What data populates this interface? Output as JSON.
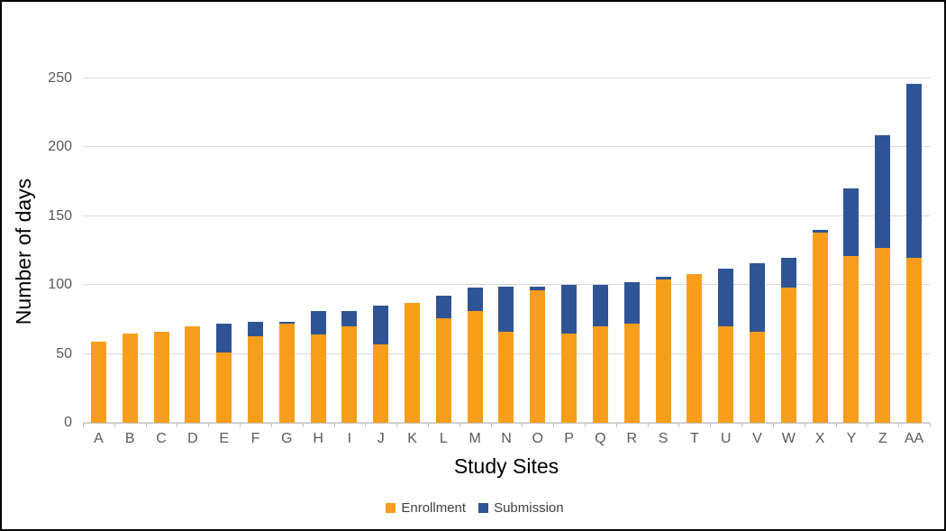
{
  "chart_data": {
    "type": "bar",
    "stacked": true,
    "title": "",
    "xlabel": "Study Sites",
    "ylabel": "Number of days",
    "ylim": [
      0,
      250
    ],
    "yticks": [
      0,
      50,
      100,
      150,
      200,
      250
    ],
    "grid": "horizontal-only",
    "legend_position": "bottom-center",
    "categories": [
      "A",
      "B",
      "C",
      "D",
      "E",
      "F",
      "G",
      "H",
      "I",
      "J",
      "K",
      "L",
      "M",
      "N",
      "O",
      "P",
      "Q",
      "R",
      "S",
      "T",
      "U",
      "V",
      "W",
      "X",
      "Y",
      "Z",
      "AA"
    ],
    "series": [
      {
        "name": "Enrollment",
        "color": "#F89E1C",
        "values": [
          59,
          65,
          66,
          70,
          51,
          63,
          72,
          64,
          70,
          57,
          87,
          76,
          81,
          66,
          96,
          65,
          70,
          72,
          104,
          108,
          70,
          66,
          98,
          138,
          121,
          127,
          120
        ]
      },
      {
        "name": "Submission",
        "color": "#2F5496",
        "values": [
          0,
          0,
          0,
          0,
          21,
          10,
          1,
          17,
          11,
          28,
          0,
          16,
          17,
          33,
          3,
          35,
          30,
          30,
          2,
          0,
          42,
          50,
          22,
          2,
          49,
          82,
          126
        ]
      }
    ],
    "totals": [
      59,
      65,
      66,
      70,
      72,
      73,
      73,
      81,
      81,
      85,
      87,
      92,
      98,
      99,
      99,
      100,
      100,
      102,
      106,
      108,
      112,
      116,
      120,
      140,
      170,
      209,
      246
    ]
  },
  "styles": {
    "background": "#FFFFFF",
    "frame_border_color": "#000000",
    "grid_color": "#D9D9D9",
    "axis_line_color": "#C9C9C9",
    "tick_mark_color": "#BFBFBF",
    "tick_label_color": "#595959",
    "axis_title_color": "#000000",
    "legend_text_color": "#404040"
  }
}
